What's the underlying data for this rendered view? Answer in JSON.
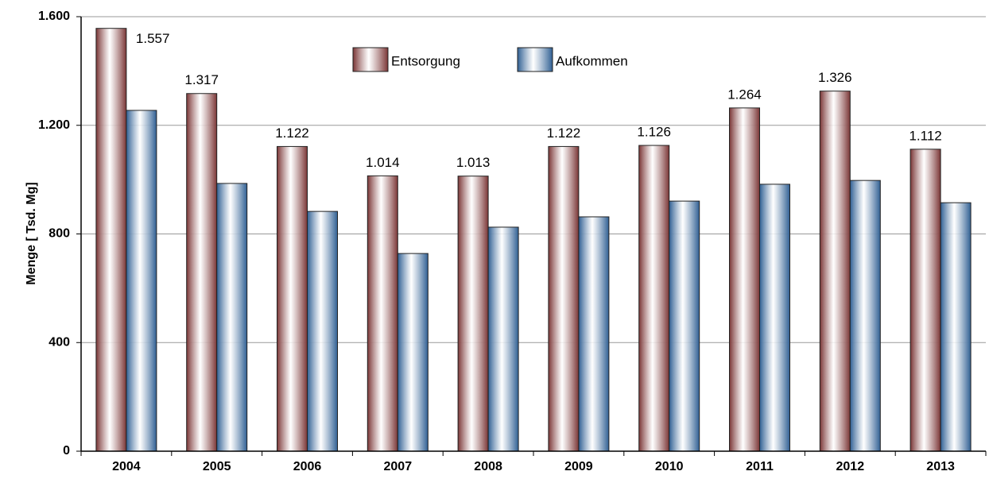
{
  "chart_data": {
    "type": "bar",
    "y_label": "Menge [ Tsd. Mg]",
    "categories": [
      "2004",
      "2005",
      "2006",
      "2007",
      "2008",
      "2009",
      "2010",
      "2011",
      "2012",
      "2013"
    ],
    "series": [
      {
        "name": "Entsorgung",
        "color": "#7a3535",
        "values": [
          1557,
          1317,
          1122,
          1014,
          1013,
          1122,
          1126,
          1264,
          1326,
          1112
        ],
        "value_labels": [
          "1.557",
          "1.317",
          "1.122",
          "1.014",
          "1.013",
          "1.122",
          "1.126",
          "1.264",
          "1.326",
          "1.112"
        ]
      },
      {
        "name": "Aufkommen",
        "color": "#2f5f93",
        "values": [
          1255,
          986,
          883,
          728,
          825,
          863,
          921,
          983,
          997,
          915
        ]
      }
    ],
    "ylim": [
      0,
      1600
    ],
    "yticks": [
      0,
      400,
      800,
      {
        "value": 1200,
        "label": "1.200"
      },
      {
        "value": 1600,
        "label": "1.600"
      }
    ],
    "grid": true
  }
}
